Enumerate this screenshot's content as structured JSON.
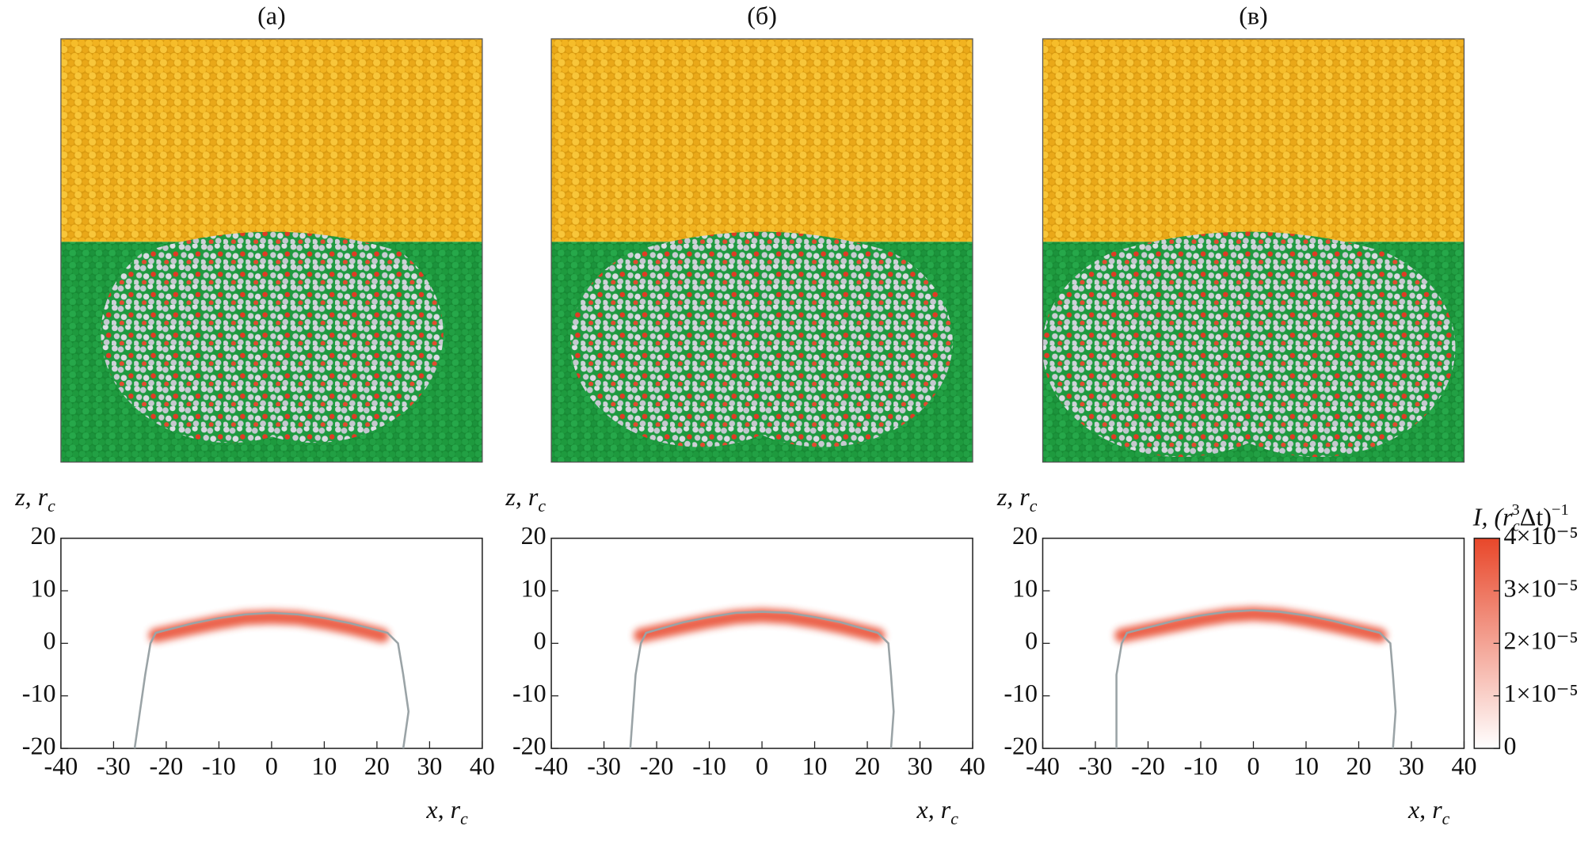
{
  "chart_data": [
    {
      "type": "heatmap",
      "title": "(а)",
      "ylabel": "z, r",
      "ylabel_sub": "c",
      "xlabel": "x, r",
      "xlabel_sub": "c",
      "xlim": [
        -40,
        40
      ],
      "ylim": [
        -20,
        20
      ],
      "xticks": [
        -40,
        -30,
        -20,
        -10,
        0,
        10,
        20,
        30,
        40
      ],
      "yticks": [
        -20,
        -10,
        0,
        10,
        20
      ],
      "band": {
        "x": [
          -22,
          -15,
          -10,
          -5,
          0,
          5,
          10,
          15,
          21
        ],
        "z": [
          1.5,
          3,
          4,
          4.8,
          5,
          4.8,
          4,
          3,
          1.5
        ]
      },
      "interface": {
        "x": [
          -26,
          -25,
          -24,
          -23,
          -22,
          -15,
          -10,
          -5,
          0,
          5,
          10,
          15,
          22,
          24,
          25,
          26,
          25
        ],
        "z": [
          -20,
          -13,
          -6,
          0,
          2,
          3.8,
          4.8,
          5.5,
          5.8,
          5.5,
          4.8,
          3.8,
          2,
          0,
          -6,
          -13,
          -20
        ]
      }
    },
    {
      "type": "heatmap",
      "title": "(б)",
      "ylabel": "z, r",
      "ylabel_sub": "c",
      "xlabel": "x, r",
      "xlabel_sub": "c",
      "xlim": [
        -40,
        40
      ],
      "ylim": [
        -20,
        20
      ],
      "xticks": [
        -40,
        -30,
        -20,
        -10,
        0,
        10,
        20,
        30,
        40
      ],
      "yticks": [
        -20,
        -10,
        0,
        10,
        20
      ],
      "band": {
        "x": [
          -23,
          -15,
          -10,
          -5,
          0,
          5,
          10,
          15,
          22
        ],
        "z": [
          1.5,
          3.2,
          4.2,
          5,
          5.3,
          5,
          4.2,
          3.2,
          1.5
        ]
      },
      "interface": {
        "x": [
          -25,
          -24.5,
          -24,
          -23,
          -22,
          -15,
          -10,
          -5,
          0,
          5,
          10,
          15,
          22,
          24,
          24.5,
          25,
          24.5
        ],
        "z": [
          -20,
          -13,
          -6,
          0,
          2,
          4,
          5,
          5.8,
          6,
          5.8,
          5,
          4,
          2,
          0,
          -6,
          -13,
          -20
        ]
      }
    },
    {
      "type": "heatmap",
      "title": "(в)",
      "ylabel": "z, r",
      "ylabel_sub": "c",
      "xlabel": "x, r",
      "xlabel_sub": "c",
      "xlim": [
        -40,
        40
      ],
      "ylim": [
        -20,
        20
      ],
      "xticks": [
        -40,
        -30,
        -20,
        -10,
        0,
        10,
        20,
        30,
        40
      ],
      "yticks": [
        -20,
        -10,
        0,
        10,
        20
      ],
      "band": {
        "x": [
          -25,
          -15,
          -10,
          -5,
          0,
          5,
          10,
          15,
          24
        ],
        "z": [
          1.5,
          3.5,
          4.5,
          5.3,
          5.6,
          5.3,
          4.5,
          3.5,
          1.5
        ]
      },
      "interface": {
        "x": [
          -26,
          -26,
          -26,
          -25,
          -24,
          -15,
          -10,
          -5,
          0,
          5,
          10,
          15,
          24,
          26,
          26.5,
          27,
          26.5
        ],
        "z": [
          -20,
          -13,
          -6,
          0,
          2,
          4.3,
          5.3,
          6,
          6.3,
          6,
          5.3,
          4.3,
          2,
          0,
          -6,
          -13,
          -20
        ]
      }
    },
    {
      "type": "colorbar",
      "label": [
        "I, (r",
        "c",
        "3",
        "Δt)",
        "−1"
      ],
      "lim": [
        0,
        4e-05
      ],
      "color": "#e8472a",
      "ticks": [
        0,
        {
          "value": 1e-05,
          "label": "1×10⁻⁵"
        },
        {
          "value": 2e-05,
          "label": "2×10⁻⁵"
        },
        {
          "value": 3e-05,
          "label": "3×10⁻⁵"
        },
        {
          "value": 4e-05,
          "label": "4×10⁻⁵"
        }
      ]
    }
  ]
}
